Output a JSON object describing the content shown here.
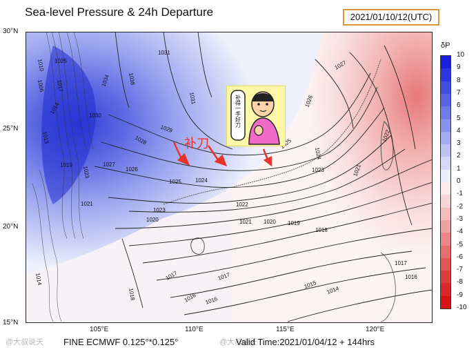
{
  "header": {
    "title": "Sea-level Pressure & 24h Departure",
    "valid_date": "2021/01/10/12(UTC)"
  },
  "footer": {
    "model": "FINE ECMWF 0.125°*0.125°",
    "valid_time": "Valid Time:2021/01/04/12 + 144hrs"
  },
  "watermarks": {
    "left": "@大叔说天",
    "right": "@大叔说天"
  },
  "annotation": {
    "text": "补刀",
    "cartoon_caption": "补得一手好刀",
    "arrow_color": "#e8322b"
  },
  "axes": {
    "lat_labels": [
      "30°N",
      "25°N",
      "20°N",
      "15°N"
    ],
    "lon_labels": [
      "105°E",
      "110°E",
      "115°E",
      "120°E"
    ]
  },
  "colorbar": {
    "label": "δP",
    "ticks": [
      "10",
      "9",
      "8",
      "7",
      "6",
      "5",
      "4",
      "3",
      "2",
      "1",
      "0",
      "-1",
      "-2",
      "-3",
      "-4",
      "-5",
      "-6",
      "-7",
      "-8",
      "-9",
      "-10"
    ],
    "colors": [
      "#1a20d9",
      "#2d36dc",
      "#414ce0",
      "#5764e3",
      "#6f7ce8",
      "#8893ec",
      "#a2abf0",
      "#bcc3f4",
      "#d4d9f8",
      "#eceefc",
      "#fcecec",
      "#f9d6d6",
      "#f4bcbc",
      "#efa2a2",
      "#ea8888",
      "#e66e6e",
      "#e25656",
      "#de3e3e",
      "#da2828",
      "#d61414"
    ]
  },
  "isobars": [
    "1010",
    "1025",
    "1006",
    "1017",
    "1014",
    "1013",
    "1030",
    "1034",
    "1038",
    "1031",
    "1031",
    "1029",
    "1028",
    "1027",
    "1026",
    "1019",
    "1023",
    "1021",
    "1025",
    "1024",
    "1023",
    "1022",
    "1021",
    "1020",
    "1019",
    "1018",
    "1017",
    "1016",
    "1015",
    "1014",
    "1027",
    "1026",
    "1025",
    "1024",
    "1023",
    "1022",
    "1021",
    "1018",
    "1017",
    "1016",
    "1014",
    "1020",
    "1017",
    "1016"
  ]
}
